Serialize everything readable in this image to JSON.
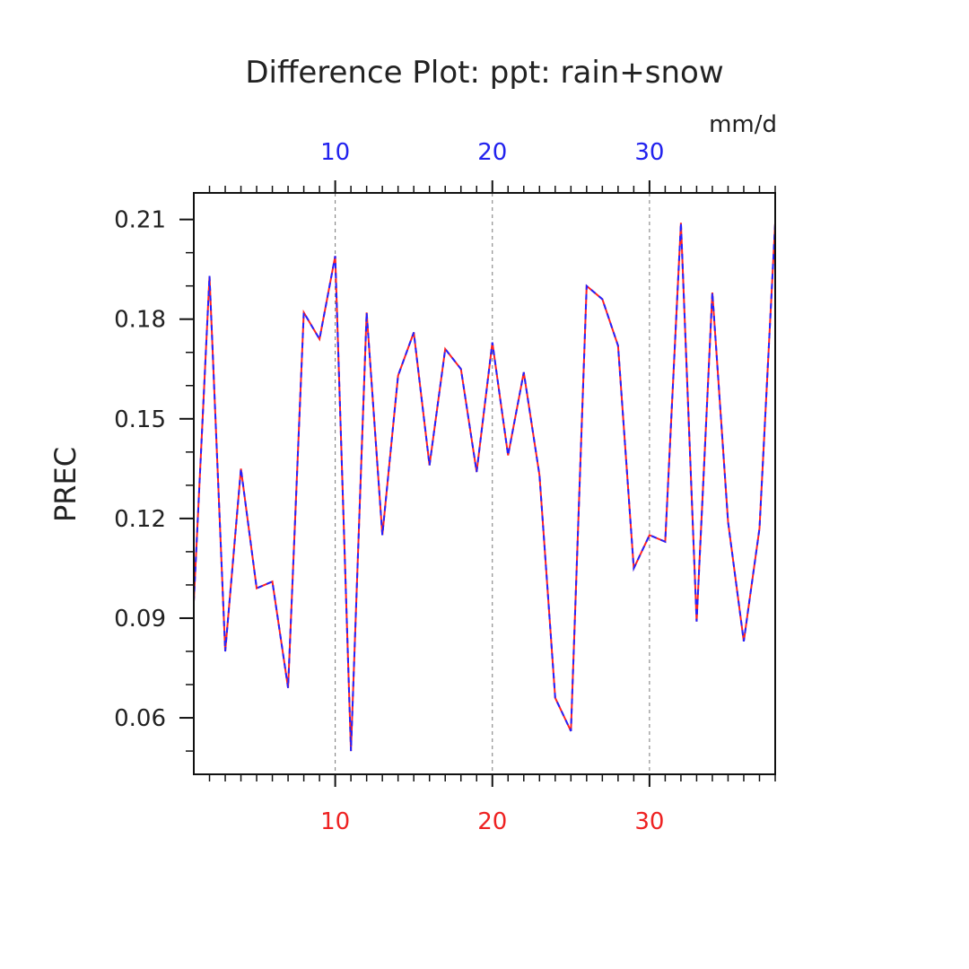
{
  "chart_data": {
    "type": "line",
    "title": "Difference Plot: ppt: rain+snow",
    "units": "mm/d",
    "ylabel": "PREC",
    "xlabel": "",
    "xlim": [
      1,
      38
    ],
    "ylim": [
      0.043,
      0.218
    ],
    "grid_x": true,
    "grid_y": false,
    "x_ticks_major": [
      10,
      20,
      30
    ],
    "x_ticks_minor": [
      2,
      3,
      4,
      5,
      6,
      7,
      8,
      9,
      11,
      12,
      13,
      14,
      15,
      16,
      17,
      18,
      19,
      21,
      22,
      23,
      24,
      25,
      26,
      27,
      28,
      29,
      31,
      32,
      33,
      34,
      35,
      36,
      37,
      38
    ],
    "x_tick_labels_top": [
      "10",
      "20",
      "30"
    ],
    "x_tick_labels_bottom": [
      "10",
      "20",
      "30"
    ],
    "y_ticks_major": [
      0.06,
      0.09,
      0.12,
      0.15,
      0.18,
      0.21
    ],
    "y_tick_labels": [
      "0.06",
      "0.09",
      "0.12",
      "0.15",
      "0.18",
      "0.21"
    ],
    "y_ticks_minor": [
      0.05,
      0.07,
      0.08,
      0.1,
      0.11,
      0.13,
      0.14,
      0.16,
      0.17,
      0.19,
      0.2
    ],
    "colors": {
      "top_axis_labels": "#2222ee",
      "bottom_axis_labels": "#ee2222",
      "series_a": "#ff2222",
      "series_b": "#2222ff"
    },
    "x": [
      1,
      2,
      3,
      4,
      5,
      6,
      7,
      8,
      9,
      10,
      11,
      12,
      13,
      14,
      15,
      16,
      17,
      18,
      19,
      20,
      21,
      22,
      23,
      24,
      25,
      26,
      27,
      28,
      29,
      30,
      31,
      32,
      33,
      34,
      35,
      36,
      37,
      38
    ],
    "series": [
      {
        "values": [
          0.095,
          0.193,
          0.08,
          0.135,
          0.099,
          0.101,
          0.069,
          0.182,
          0.174,
          0.199,
          0.05,
          0.182,
          0.115,
          0.163,
          0.176,
          0.136,
          0.171,
          0.165,
          0.134,
          0.173,
          0.139,
          0.164,
          0.133,
          0.066,
          0.056,
          0.19,
          0.186,
          0.172,
          0.105,
          0.115,
          0.113,
          0.209,
          0.089,
          0.188,
          0.119,
          0.083,
          0.117,
          0.209
        ]
      },
      {
        "values": [
          0.095,
          0.193,
          0.08,
          0.135,
          0.099,
          0.101,
          0.069,
          0.182,
          0.174,
          0.199,
          0.05,
          0.182,
          0.115,
          0.163,
          0.176,
          0.136,
          0.171,
          0.165,
          0.134,
          0.173,
          0.139,
          0.164,
          0.133,
          0.066,
          0.056,
          0.19,
          0.186,
          0.172,
          0.105,
          0.115,
          0.113,
          0.209,
          0.089,
          0.188,
          0.119,
          0.083,
          0.117,
          0.209
        ]
      }
    ]
  }
}
